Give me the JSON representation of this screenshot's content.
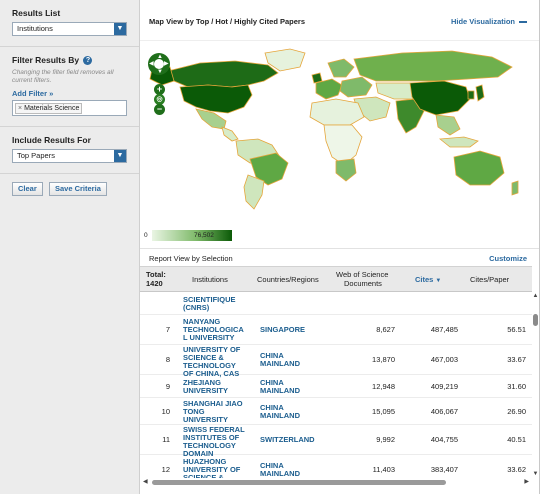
{
  "sidebar": {
    "results_list": {
      "title": "Results List",
      "value": "Institutions"
    },
    "filter": {
      "title": "Filter Results By",
      "help": "?",
      "note": "Changing the filter field removes all current filters.",
      "add_filter": "Add Filter »",
      "chip": "Materials Science"
    },
    "include": {
      "title": "Include Results For",
      "value": "Top Papers"
    },
    "buttons": {
      "clear": "Clear",
      "save": "Save Criteria"
    }
  },
  "map": {
    "title": "Map View by Top / Hot / Highly Cited Papers",
    "hide_label": "Hide Visualization",
    "legend_min": "0",
    "legend_max": "76,502",
    "colors": {
      "dark": "#0b5a07",
      "mid": "#6fb04d",
      "light": "#d8ecc8",
      "border": "#e5a53a"
    }
  },
  "report": {
    "title": "Report View by Selection",
    "customize": "Customize",
    "columns": {
      "total": "Total:",
      "total_value": "1420",
      "institutions": "Institutions",
      "countries": "Countries/Regions",
      "wos1": "Web of Science",
      "wos2": "Documents",
      "cites": "Cites",
      "cites_per_paper": "Cites/Paper"
    },
    "partial_row": {
      "name": "SCIENTIFIQUE (CNRS)"
    },
    "rows": [
      {
        "rank": "7",
        "n1": "NANYANG",
        "n2": "TECHNOLOGICA",
        "n3": "L UNIVERSITY",
        "c1": "SINGAPORE",
        "c2": "",
        "docs": "8,627",
        "cites": "487,485",
        "cpp": "56.51"
      },
      {
        "rank": "8",
        "n1": "UNIVERSITY OF",
        "n2": "SCIENCE &",
        "n3": "TECHNOLOGY",
        "n4": "OF CHINA, CAS",
        "c1": "CHINA",
        "c2": "MAINLAND",
        "docs": "13,870",
        "cites": "467,003",
        "cpp": "33.67"
      },
      {
        "rank": "9",
        "n1": "ZHEJIANG",
        "n2": "UNIVERSITY",
        "n3": "",
        "c1": "CHINA",
        "c2": "MAINLAND",
        "docs": "12,948",
        "cites": "409,219",
        "cpp": "31.60"
      },
      {
        "rank": "10",
        "n1": "SHANGHAI JIAO",
        "n2": "TONG",
        "n3": "UNIVERSITY",
        "c1": "CHINA",
        "c2": "MAINLAND",
        "docs": "15,095",
        "cites": "406,067",
        "cpp": "26.90"
      },
      {
        "rank": "11",
        "n1": "SWISS FEDERAL",
        "n2": "INSTITUTES OF",
        "n3": "TECHNOLOGY",
        "n4": "DOMAIN",
        "c1": "SWITZERLAND",
        "c2": "",
        "docs": "9,992",
        "cites": "404,755",
        "cpp": "40.51"
      },
      {
        "rank": "12",
        "n1": "HUAZHONG",
        "n2": "UNIVERSITY OF",
        "n3": "SCIENCE &",
        "c1": "CHINA",
        "c2": "MAINLAND",
        "docs": "11,403",
        "cites": "383,407",
        "cpp": "33.62"
      }
    ]
  }
}
